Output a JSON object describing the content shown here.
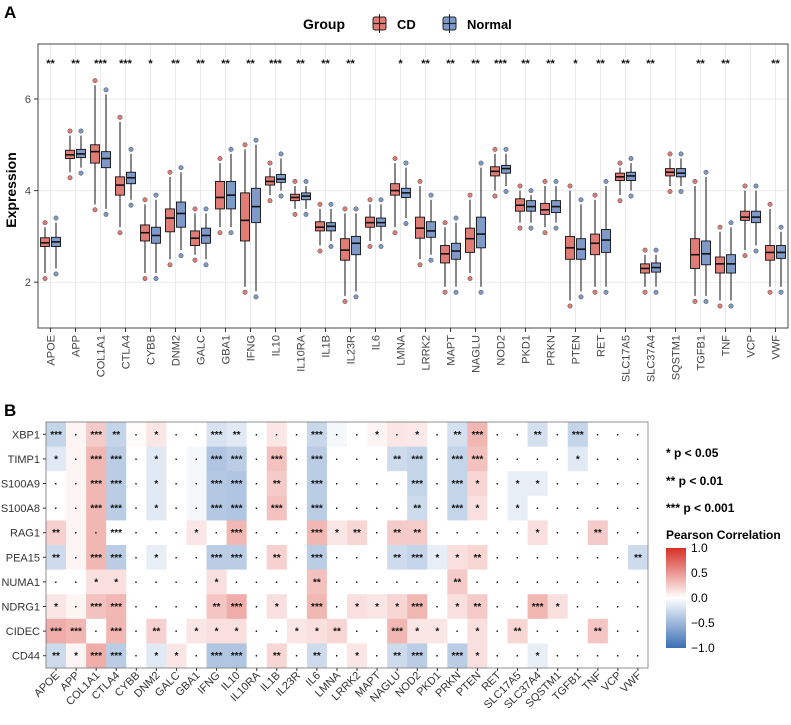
{
  "panels": {
    "a": "A",
    "b": "B"
  },
  "colors": {
    "cd": "#e07c76",
    "normal": "#7f9ac9",
    "pos": "#d73027",
    "neg": "#3a6fb4",
    "border": "#555555",
    "grid": "#ebebeb"
  },
  "chart_data": [
    {
      "type": "boxplot",
      "legend_title": "Group",
      "legend": [
        "CD",
        "Normal"
      ],
      "ylabel": "Expression",
      "xlabel": "",
      "ylim": [
        1.0,
        7.2
      ],
      "yticks": [
        2,
        4,
        6
      ],
      "genes": [
        "APOE",
        "APP",
        "COL1A1",
        "CTLA4",
        "CYBB",
        "DNM2",
        "GALC",
        "GBA1",
        "IFNG",
        "IL10",
        "IL10RA",
        "IL1B",
        "IL23R",
        "IL6",
        "LMNA",
        "LRRK2",
        "MAPT",
        "NAGLU",
        "NOD2",
        "PKD1",
        "PRKN",
        "PTEN",
        "RET",
        "SLC17A5",
        "SLC37A4",
        "SQSTM1",
        "TGFB1",
        "TNF",
        "VCP",
        "VWF"
      ],
      "significance": [
        "**",
        "**",
        "***",
        "***",
        "*",
        "**",
        "**",
        "**",
        "**",
        "***",
        "**",
        "**",
        "**",
        "",
        "*",
        "**",
        "**",
        "**",
        "***",
        "**",
        "**",
        "*",
        "**",
        "**",
        "**",
        "",
        "**",
        "**",
        "",
        "**"
      ],
      "series": [
        {
          "name": "CD",
          "stats": [
            [
              2.2,
              2.78,
              2.86,
              2.97,
              3.2
            ],
            [
              4.4,
              4.7,
              4.78,
              4.88,
              5.2
            ],
            [
              3.7,
              4.6,
              4.85,
              5.0,
              6.3
            ],
            [
              3.2,
              3.9,
              4.12,
              4.3,
              5.5
            ],
            [
              2.2,
              2.9,
              3.08,
              3.25,
              3.7
            ],
            [
              2.5,
              3.1,
              3.4,
              3.6,
              4.3
            ],
            [
              2.6,
              2.8,
              2.96,
              3.12,
              3.5
            ],
            [
              3.2,
              3.6,
              3.85,
              4.2,
              4.6
            ],
            [
              1.9,
              2.9,
              3.35,
              3.95,
              4.9
            ],
            [
              3.9,
              4.12,
              4.2,
              4.3,
              4.5
            ],
            [
              3.6,
              3.78,
              3.85,
              3.92,
              4.1
            ],
            [
              2.8,
              3.12,
              3.2,
              3.32,
              3.6
            ],
            [
              1.7,
              2.48,
              2.7,
              2.95,
              3.5
            ],
            [
              2.9,
              3.2,
              3.3,
              3.42,
              3.7
            ],
            [
              3.2,
              3.9,
              4.0,
              4.15,
              4.6
            ],
            [
              2.5,
              2.96,
              3.18,
              3.42,
              4.1
            ],
            [
              1.9,
              2.42,
              2.62,
              2.8,
              3.2
            ],
            [
              2.2,
              2.65,
              2.95,
              3.18,
              3.8
            ],
            [
              4.0,
              4.32,
              4.42,
              4.52,
              4.8
            ],
            [
              3.3,
              3.55,
              3.68,
              3.82,
              4.0
            ],
            [
              3.2,
              3.48,
              3.58,
              3.72,
              4.1
            ],
            [
              1.6,
              2.5,
              2.75,
              3.0,
              4.0
            ],
            [
              1.9,
              2.6,
              2.85,
              3.05,
              3.8
            ],
            [
              3.9,
              4.22,
              4.3,
              4.38,
              4.5
            ],
            [
              1.9,
              2.2,
              2.3,
              2.4,
              2.6
            ],
            [
              4.1,
              4.32,
              4.4,
              4.48,
              4.7
            ],
            [
              1.7,
              2.3,
              2.6,
              2.95,
              4.1
            ],
            [
              1.6,
              2.2,
              2.4,
              2.55,
              3.1
            ],
            [
              2.7,
              3.35,
              3.42,
              3.55,
              4.0
            ],
            [
              1.9,
              2.48,
              2.65,
              2.8,
              3.6
            ]
          ]
        },
        {
          "name": "Normal",
          "stats": [
            [
              2.3,
              2.78,
              2.88,
              2.98,
              3.3
            ],
            [
              4.5,
              4.72,
              4.8,
              4.9,
              5.2
            ],
            [
              3.6,
              4.5,
              4.7,
              4.85,
              6.1
            ],
            [
              3.8,
              4.15,
              4.28,
              4.4,
              4.8
            ],
            [
              2.2,
              2.85,
              3.02,
              3.2,
              3.8
            ],
            [
              2.7,
              3.2,
              3.5,
              3.75,
              4.4
            ],
            [
              2.5,
              2.85,
              3.02,
              3.18,
              3.5
            ],
            [
              3.2,
              3.6,
              3.9,
              4.2,
              4.8
            ],
            [
              1.8,
              3.3,
              3.65,
              4.05,
              5.0
            ],
            [
              4.0,
              4.18,
              4.25,
              4.35,
              4.7
            ],
            [
              3.6,
              3.8,
              3.88,
              3.95,
              4.1
            ],
            [
              2.9,
              3.12,
              3.22,
              3.3,
              3.6
            ],
            [
              1.8,
              2.6,
              2.85,
              3.0,
              3.5
            ],
            [
              2.9,
              3.22,
              3.3,
              3.4,
              3.7
            ],
            [
              3.4,
              3.85,
              3.95,
              4.05,
              4.5
            ],
            [
              2.6,
              2.98,
              3.12,
              3.32,
              3.8
            ],
            [
              1.9,
              2.5,
              2.68,
              2.85,
              3.3
            ],
            [
              1.9,
              2.75,
              3.05,
              3.42,
              4.5
            ],
            [
              4.1,
              4.38,
              4.48,
              4.55,
              4.8
            ],
            [
              3.3,
              3.55,
              3.65,
              3.78,
              3.9
            ],
            [
              3.3,
              3.52,
              3.65,
              3.78,
              4.1
            ],
            [
              1.8,
              2.5,
              2.72,
              2.95,
              3.7
            ],
            [
              1.9,
              2.65,
              2.92,
              3.15,
              4.1
            ],
            [
              4.0,
              4.22,
              4.32,
              4.4,
              4.6
            ],
            [
              1.9,
              2.22,
              2.32,
              2.42,
              2.6
            ],
            [
              4.1,
              4.3,
              4.38,
              4.48,
              4.7
            ],
            [
              1.7,
              2.38,
              2.62,
              2.9,
              4.3
            ],
            [
              1.6,
              2.2,
              2.4,
              2.6,
              3.2
            ],
            [
              2.8,
              3.3,
              3.42,
              3.55,
              4.0
            ],
            [
              1.9,
              2.52,
              2.65,
              2.8,
              3.1
            ]
          ]
        }
      ]
    },
    {
      "type": "heatmap",
      "rows": [
        "XBP1",
        "TIMP1",
        "S100A9",
        "S100A8",
        "RAG1",
        "PEA15",
        "NUMA1",
        "NDRG1",
        "CIDEC",
        "CD44"
      ],
      "columns": [
        "APOE",
        "APP",
        "COL1A1",
        "CTLA4",
        "CYBB",
        "DNM2",
        "GALC",
        "GBA1",
        "IFNG",
        "IL10",
        "IL10RA",
        "IL1B",
        "IL23R",
        "IL6",
        "LMNA",
        "LRRK2",
        "MAPT",
        "NAGLU",
        "NOD2",
        "PKD1",
        "PRKN",
        "PTEN",
        "RET",
        "SLC17A5",
        "SLC37A4",
        "SQSTM1",
        "TGFB1",
        "TNF",
        "VCP",
        "VWF"
      ],
      "legend_title": "Pearson Correlation",
      "color_range": [
        -1.0,
        1.0
      ],
      "colorbar_ticks": [
        "1.0",
        "0.5",
        "0.0",
        "−0.5",
        "−1.0"
      ],
      "sig_legend": [
        "* p < 0.05",
        "** p < 0.01",
        "*** p < 0.001"
      ],
      "values": [
        [
          -0.3,
          0.05,
          0.25,
          -0.3,
          0.02,
          0.12,
          0.0,
          0.0,
          -0.2,
          -0.15,
          0.0,
          0.12,
          0.0,
          -0.28,
          -0.05,
          0.0,
          0.05,
          0.12,
          0.1,
          0.0,
          -0.22,
          0.35,
          0.0,
          0.0,
          -0.22,
          0.0,
          -0.3,
          0.0,
          0.0,
          0.0
        ],
        [
          -0.15,
          0.05,
          0.35,
          -0.35,
          0.0,
          -0.15,
          0.0,
          -0.05,
          -0.4,
          -0.35,
          0.0,
          0.3,
          0.0,
          -0.35,
          0.0,
          0.0,
          0.0,
          -0.25,
          -0.3,
          0.0,
          -0.3,
          0.3,
          0.0,
          0.0,
          0.0,
          0.0,
          -0.15,
          0.0,
          0.0,
          0.0
        ],
        [
          0.0,
          0.05,
          0.35,
          -0.35,
          0.0,
          -0.15,
          0.0,
          -0.05,
          -0.38,
          -0.4,
          0.0,
          0.25,
          0.0,
          -0.35,
          0.0,
          0.0,
          0.0,
          0.0,
          -0.3,
          0.0,
          -0.3,
          0.2,
          0.0,
          -0.12,
          -0.12,
          0.0,
          0.0,
          0.0,
          0.0,
          0.0
        ],
        [
          0.0,
          0.05,
          0.35,
          -0.35,
          0.0,
          -0.15,
          0.0,
          -0.05,
          -0.38,
          -0.4,
          0.0,
          0.3,
          0.0,
          -0.35,
          0.0,
          0.0,
          0.0,
          0.0,
          -0.25,
          0.0,
          -0.3,
          0.15,
          0.0,
          -0.12,
          0.0,
          0.0,
          0.0,
          0.0,
          0.0,
          0.0
        ],
        [
          0.22,
          0.05,
          0.35,
          0.0,
          0.0,
          0.0,
          0.0,
          0.12,
          0.0,
          0.35,
          0.0,
          0.0,
          0.0,
          0.35,
          0.12,
          0.2,
          0.0,
          0.25,
          0.25,
          0.0,
          0.0,
          0.0,
          0.0,
          0.0,
          0.15,
          0.0,
          0.0,
          0.25,
          0.0,
          0.0
        ],
        [
          -0.25,
          0.05,
          0.35,
          -0.35,
          0.0,
          -0.12,
          0.0,
          0.0,
          -0.35,
          -0.35,
          0.0,
          0.22,
          0.0,
          -0.35,
          0.0,
          0.0,
          0.0,
          -0.25,
          -0.3,
          -0.12,
          0.15,
          0.2,
          0.0,
          0.0,
          0.0,
          0.0,
          0.0,
          0.0,
          0.0,
          -0.25
        ],
        [
          0.0,
          0.0,
          0.15,
          0.15,
          0.0,
          0.0,
          0.0,
          0.0,
          0.15,
          0.0,
          0.0,
          0.0,
          0.0,
          0.3,
          0.0,
          0.0,
          0.0,
          0.0,
          0.0,
          0.0,
          0.25,
          0.0,
          0.0,
          0.0,
          0.0,
          0.0,
          0.0,
          0.0,
          0.0,
          0.0
        ],
        [
          0.12,
          0.05,
          0.3,
          0.35,
          0.0,
          0.0,
          0.0,
          0.0,
          0.28,
          0.4,
          0.0,
          0.15,
          0.0,
          0.35,
          0.0,
          0.15,
          0.12,
          0.2,
          0.35,
          0.0,
          0.15,
          0.25,
          0.0,
          0.0,
          0.35,
          0.15,
          0.0,
          0.0,
          0.0,
          0.0
        ],
        [
          0.4,
          0.35,
          0.0,
          0.35,
          0.0,
          0.22,
          0.0,
          0.12,
          0.15,
          0.15,
          0.0,
          0.0,
          0.12,
          0.15,
          0.2,
          0.0,
          0.0,
          0.35,
          0.12,
          0.12,
          0.0,
          0.15,
          0.0,
          0.2,
          0.0,
          0.0,
          0.0,
          0.28,
          0.0,
          0.0
        ],
        [
          -0.25,
          0.05,
          0.4,
          -0.35,
          0.0,
          -0.15,
          0.12,
          0.0,
          -0.4,
          -0.4,
          0.0,
          0.2,
          0.0,
          -0.25,
          0.0,
          0.12,
          0.0,
          -0.25,
          -0.35,
          0.0,
          -0.35,
          0.15,
          0.0,
          0.0,
          -0.12,
          0.0,
          0.0,
          0.0,
          0.0,
          0.0
        ]
      ],
      "significance": [
        [
          "***",
          "",
          "***",
          "**",
          "",
          "*",
          "",
          "",
          "***",
          "**",
          "",
          "",
          "",
          "***",
          "",
          "",
          "*",
          "",
          "*",
          "",
          "**",
          "***",
          "",
          "",
          "**",
          "",
          "***",
          "",
          "",
          ""
        ],
        [
          "*",
          "",
          "***",
          "***",
          "",
          "*",
          "",
          "",
          "***",
          "***",
          "",
          "***",
          "",
          "***",
          "",
          "",
          "",
          "**",
          "***",
          "",
          "***",
          "***",
          "",
          "",
          "",
          "",
          "*",
          "",
          "",
          ""
        ],
        [
          "",
          "",
          "***",
          "***",
          "",
          "*",
          "",
          "",
          "***",
          "***",
          "",
          "**",
          "",
          "***",
          "",
          "",
          "",
          "",
          "***",
          "",
          "***",
          "*",
          "",
          "*",
          "*",
          "",
          "",
          "",
          "",
          ""
        ],
        [
          "",
          "",
          "***",
          "***",
          "",
          "*",
          "",
          "",
          "***",
          "***",
          "",
          "***",
          "",
          "***",
          "",
          "",
          "",
          "",
          "**",
          "",
          "***",
          "*",
          "",
          "*",
          "",
          "",
          "",
          "",
          "",
          ""
        ],
        [
          "**",
          "",
          "",
          "***",
          "",
          "",
          "",
          "*",
          "",
          "***",
          "",
          "",
          "",
          "***",
          "*",
          "**",
          "",
          "**",
          "**",
          "",
          "",
          "",
          "",
          "",
          "*",
          "",
          "",
          "**",
          "",
          ""
        ],
        [
          "**",
          "",
          "***",
          "***",
          "",
          "*",
          "",
          "",
          "***",
          "***",
          "",
          "**",
          "",
          "***",
          "",
          "",
          "",
          "**",
          "***",
          "*",
          "*",
          "**",
          "",
          "",
          "",
          "",
          "",
          "",
          "",
          "**"
        ],
        [
          "",
          "",
          "*",
          "*",
          "",
          "",
          "",
          "",
          "*",
          "",
          "",
          "",
          "",
          "**",
          "",
          "",
          "",
          "",
          "",
          "",
          "**",
          "",
          "",
          "",
          "",
          "",
          "",
          "",
          "",
          ""
        ],
        [
          "*",
          "",
          "***",
          "***",
          "",
          "",
          "",
          "",
          "**",
          "***",
          "",
          "*",
          "",
          "***",
          "",
          "*",
          "*",
          "*",
          "***",
          "",
          "*",
          "**",
          "",
          "",
          "***",
          "*",
          "",
          "",
          "",
          ""
        ],
        [
          "***",
          "***",
          "",
          "***",
          "",
          "**",
          "",
          "*",
          "*",
          "*",
          "",
          "",
          "*",
          "*",
          "**",
          "",
          "",
          "***",
          "*",
          "*",
          "",
          "*",
          "",
          "**",
          "",
          "",
          "",
          "**",
          "",
          ""
        ],
        [
          "**",
          "*",
          "***",
          "***",
          "",
          "*",
          "*",
          "",
          "***",
          "***",
          "",
          "**",
          "",
          "**",
          "",
          "*",
          "",
          "**",
          "***",
          "",
          "***",
          "*",
          "",
          "",
          "*",
          "",
          "",
          "",
          "",
          ""
        ]
      ]
    }
  ]
}
